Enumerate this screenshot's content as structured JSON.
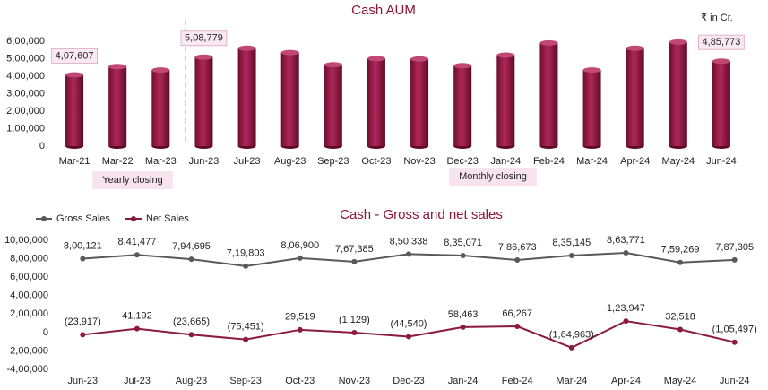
{
  "chart_data": [
    {
      "type": "bar",
      "title": "Cash AUM",
      "unit": "₹ in Cr.",
      "group_labels": [
        "Yearly closing",
        "Monthly closing"
      ],
      "categories": [
        "Mar-21",
        "Mar-22",
        "Mar-23",
        "Jun-23",
        "Jul-23",
        "Aug-23",
        "Sep-23",
        "Oct-23",
        "Nov-23",
        "Dec-23",
        "Jan-24",
        "Feb-24",
        "Mar-24",
        "Apr-24",
        "May-24",
        "Jun-24"
      ],
      "values": [
        407607,
        455000,
        435000,
        508779,
        560000,
        535000,
        465000,
        500000,
        498000,
        460000,
        520000,
        590000,
        435000,
        560000,
        595000,
        485773
      ],
      "value_labels": [
        "4,07,607",
        null,
        null,
        "5,08,779",
        null,
        null,
        null,
        null,
        null,
        null,
        null,
        null,
        null,
        null,
        null,
        "4,85,773"
      ],
      "color": "#8b1538",
      "ylim": [
        0,
        620000
      ],
      "yticks": [
        0,
        {
          "value": 100000,
          "label": "1,00,000"
        },
        {
          "value": 200000,
          "label": "2,00,000"
        },
        {
          "value": 300000,
          "label": "3,00,000"
        },
        {
          "value": 400000,
          "label": "4,00,000"
        },
        {
          "value": 500000,
          "label": "5,00,000"
        },
        {
          "value": 600000,
          "label": "6,00,000"
        }
      ],
      "grid": false
    },
    {
      "type": "line",
      "title": "Cash - Gross and net sales",
      "legend": "top-left",
      "categories": [
        "Jun-23",
        "Jul-23",
        "Aug-23",
        "Sep-23",
        "Oct-23",
        "Nov-23",
        "Dec-23",
        "Jan-24",
        "Feb-24",
        "Mar-24",
        "Apr-24",
        "May-24",
        "Jun-24"
      ],
      "series": [
        {
          "name": "Gross Sales",
          "color": "#595959",
          "values": [
            800121,
            841477,
            794695,
            719803,
            806900,
            767385,
            850338,
            835071,
            786673,
            835145,
            863771,
            759269,
            787305
          ],
          "value_labels": [
            "8,00,121",
            "8,41,477",
            "7,94,695",
            "7,19,803",
            "8,06,900",
            "7,67,385",
            "8,50,338",
            "8,35,071",
            "7,86,673",
            "8,35,145",
            "8,63,771",
            "7,59,269",
            "7,87,305"
          ]
        },
        {
          "name": "Net Sales",
          "color": "#8b1a3e",
          "values": [
            -23917,
            41192,
            -23665,
            -75451,
            29519,
            -1129,
            -44540,
            58463,
            66267,
            -164963,
            123947,
            32518,
            -105497
          ],
          "value_labels": [
            "(23,917)",
            "41,192",
            "(23,665)",
            "(75,451)",
            "29,519",
            "(1,129)",
            "(44,540)",
            "58,463",
            "66,267",
            "(1,64,963)",
            "1,23,947",
            "32,518",
            "(1,05,497)"
          ]
        }
      ],
      "ylim": [
        -400000,
        1000000
      ],
      "yticks": [
        {
          "value": -400000,
          "label": "-4,00,000"
        },
        {
          "value": -200000,
          "label": "-2,00,000"
        },
        0,
        {
          "value": 200000,
          "label": "2,00,000"
        },
        {
          "value": 400000,
          "label": "4,00,000"
        },
        {
          "value": 600000,
          "label": "6,00,000"
        },
        {
          "value": 800000,
          "label": "8,00,000"
        },
        {
          "value": 1000000,
          "label": "10,00,000"
        }
      ],
      "grid": false
    }
  ]
}
